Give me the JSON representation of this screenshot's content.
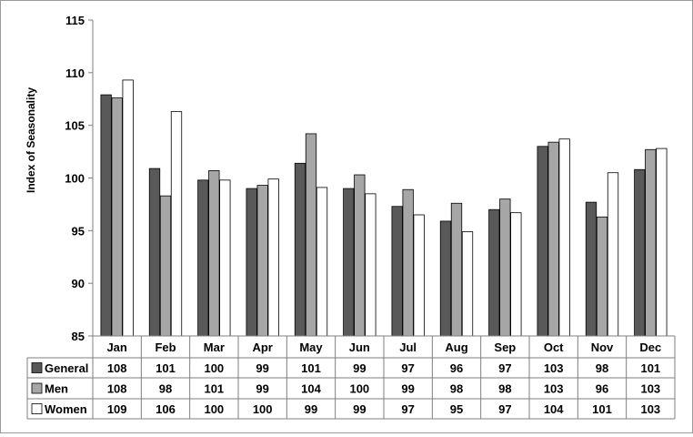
{
  "chart_data": {
    "type": "bar",
    "ylabel": "Index of Seasonality",
    "ylim": [
      85,
      115
    ],
    "yticks": [
      85,
      90,
      95,
      100,
      105,
      110,
      115
    ],
    "grid": false,
    "legend": "data-table",
    "categories": [
      "Jan",
      "Feb",
      "Mar",
      "Apr",
      "May",
      "Jun",
      "Jul",
      "Aug",
      "Sep",
      "Oct",
      "Nov",
      "Dec"
    ],
    "series": [
      {
        "name": "General",
        "color": "#595959",
        "values": [
          107.9,
          100.9,
          99.8,
          99.0,
          101.4,
          99.0,
          97.3,
          95.9,
          97.0,
          103.0,
          97.7,
          100.8
        ],
        "labels": [
          "108",
          "101",
          "100",
          "99",
          "101",
          "99",
          "97",
          "96",
          "97",
          "103",
          "98",
          "101"
        ]
      },
      {
        "name": "Men",
        "color": "#a6a6a6",
        "values": [
          107.6,
          98.3,
          100.7,
          99.3,
          104.2,
          100.3,
          98.9,
          97.6,
          98.0,
          103.4,
          96.3,
          102.7
        ],
        "labels": [
          "108",
          "98",
          "101",
          "99",
          "104",
          "100",
          "99",
          "98",
          "98",
          "103",
          "96",
          "103"
        ]
      },
      {
        "name": "Women",
        "color": "#ffffff",
        "values": [
          109.3,
          106.3,
          99.8,
          99.9,
          99.1,
          98.5,
          96.5,
          94.9,
          96.7,
          103.7,
          100.5,
          102.8
        ],
        "labels": [
          "109",
          "106",
          "100",
          "100",
          "99",
          "99",
          "97",
          "95",
          "97",
          "104",
          "101",
          "103"
        ]
      }
    ]
  }
}
